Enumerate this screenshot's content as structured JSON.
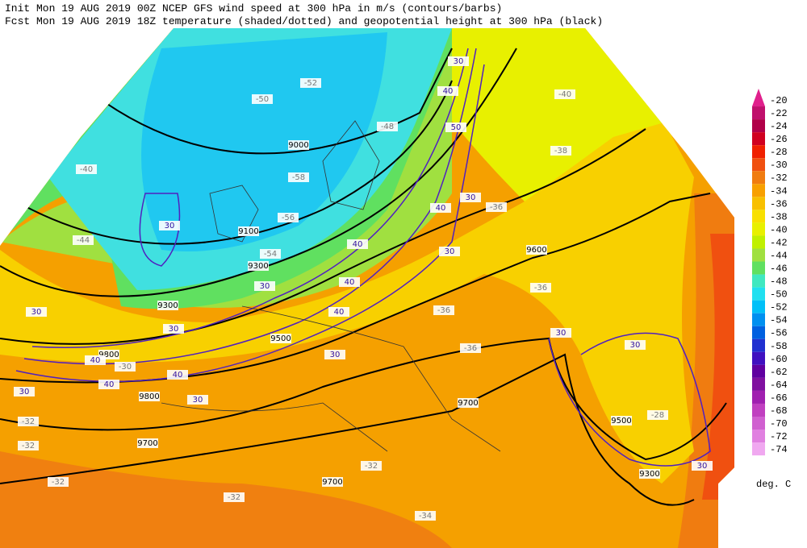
{
  "header": {
    "line1": "Init  Mon 19 AUG 2019 00Z  NCEP GFS wind speed at 300 hPa in m/s (contours/barbs)",
    "line2": "Fcst Mon 19 AUG 2019 18Z  temperature (shaded/dotted) and geopotential height at 300 hPa (black)"
  },
  "colorbar": {
    "levels": [
      -20,
      -22,
      -24,
      -26,
      -28,
      -30,
      -32,
      -34,
      -36,
      -38,
      -40,
      -42,
      -44,
      -46,
      -48,
      -50,
      -52,
      -54,
      -56,
      -58,
      -60,
      -62,
      -64,
      -66,
      -68,
      -70,
      -72,
      -74
    ],
    "colors": [
      "#e0208c",
      "#c0106c",
      "#b00048",
      "#d00020",
      "#f02000",
      "#f05010",
      "#f07c10",
      "#f8a000",
      "#f8c000",
      "#f8e000",
      "#e8f000",
      "#c0f000",
      "#a0e040",
      "#60e060",
      "#40e8c0",
      "#20e0f0",
      "#00c0f8",
      "#0090f0",
      "#0060e0",
      "#2030d0",
      "#4010c0",
      "#6000a0",
      "#8010a0",
      "#a020b0",
      "#c040c0",
      "#d060d0",
      "#e080e0",
      "#f0a8f0"
    ],
    "unit": "deg. C"
  },
  "height_labels": [
    "9000",
    "9100",
    "9300",
    "9500",
    "9700",
    "9700",
    "9700",
    "9800",
    "9800",
    "9500",
    "9300",
    "9600",
    "9300"
  ],
  "temperature_labels": [
    "-52",
    "-50",
    "-48",
    "-58",
    "-56",
    "-54",
    "-44",
    "-40",
    "-38",
    "-36",
    "-36",
    "-36",
    "-36",
    "-32",
    "-32",
    "-32",
    "-32",
    "-34",
    "-32",
    "-40",
    "-30",
    "-28"
  ],
  "wind_labels": [
    "30",
    "30",
    "40",
    "30",
    "40",
    "30",
    "40",
    "30",
    "30",
    "40",
    "40",
    "30",
    "40",
    "30",
    "40",
    "30",
    "40",
    "50",
    "30",
    "30",
    "30",
    "30"
  ]
}
